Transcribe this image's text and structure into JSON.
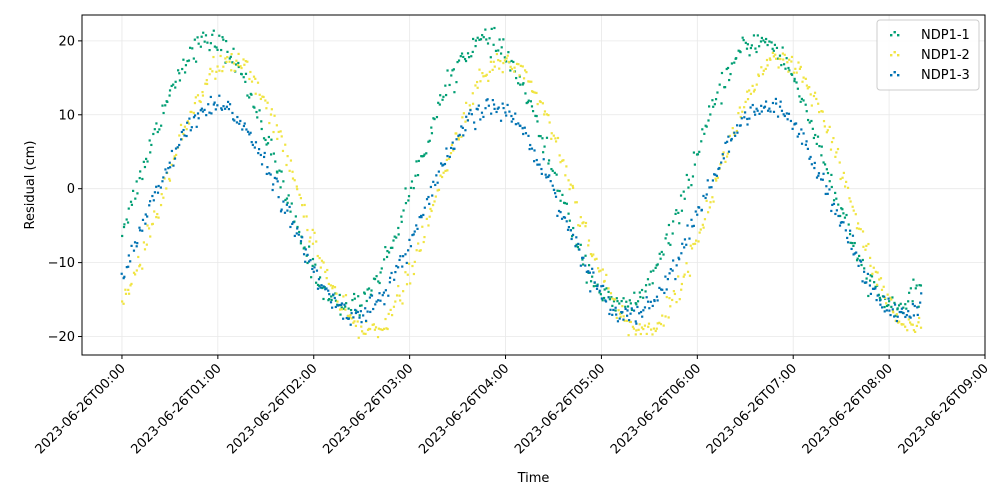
{
  "chart_data": {
    "type": "scatter",
    "title": "",
    "xlabel": "Time",
    "ylabel": "Residual (cm)",
    "x_ticks": [
      "2023-06-26T00:00",
      "2023-06-26T01:00",
      "2023-06-26T02:00",
      "2023-06-26T03:00",
      "2023-06-26T04:00",
      "2023-06-26T05:00",
      "2023-06-26T06:00",
      "2023-06-26T07:00",
      "2023-06-26T08:00",
      "2023-06-26T09:00"
    ],
    "y_ticks": [
      -20,
      -10,
      0,
      10,
      20
    ],
    "xlim": [
      "2023-06-25T23:35",
      "2023-06-26T09:00"
    ],
    "ylim": [
      -22.5,
      23.5
    ],
    "grid": true,
    "legend_position": "top-right",
    "x_range": [
      "2023-06-26T00:00",
      "2023-06-26T08:20"
    ],
    "series": [
      {
        "name": "NDP1-1",
        "color": "#009E73",
        "amplitude": 18,
        "offset": 2,
        "peak_times": [
          "2023-06-26T00:55",
          "2023-06-26T03:47",
          "2023-06-26T06:39"
        ],
        "noise": 0.8
      },
      {
        "name": "NDP1-2",
        "color": "#F0E442",
        "amplitude": 18.2,
        "offset": -1,
        "peak_times": [
          "2023-06-26T01:08",
          "2023-06-26T04:00",
          "2023-06-26T06:52"
        ],
        "noise": 0.8
      },
      {
        "name": "NDP1-3",
        "color": "#0072B2",
        "amplitude": 14,
        "offset": -3,
        "peak_times": [
          "2023-06-26T01:00",
          "2023-06-26T03:52",
          "2023-06-26T06:44"
        ],
        "noise": 0.7
      }
    ]
  }
}
